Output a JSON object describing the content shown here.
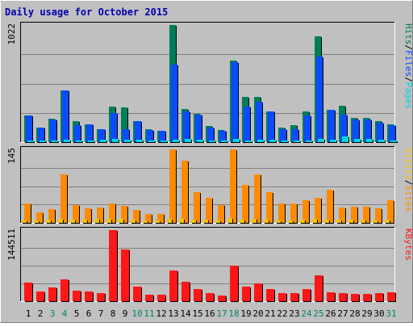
{
  "title": "Daily usage for October 2015",
  "colors": {
    "background": "#C0C0C0",
    "frame_light": "#FFFFFF",
    "frame_dark": "#808080",
    "title": "#0000B0",
    "hits": "#007E5A",
    "files": "#0B4BFF",
    "pages": "#00D5E0",
    "visits": "#F5C400",
    "sites": "#FF8A00",
    "kbytes": "#FF1717",
    "label_dark": "#000000",
    "weekend_label": "#00826B",
    "gridline": "#808080"
  },
  "chart_data": [
    {
      "type": "bar",
      "panel": "hits",
      "ymax_label": "1022",
      "ymax": 1022,
      "categories": [
        "1",
        "2",
        "3",
        "4",
        "5",
        "6",
        "7",
        "8",
        "9",
        "10",
        "11",
        "12",
        "13",
        "14",
        "15",
        "16",
        "17",
        "18",
        "19",
        "20",
        "21",
        "22",
        "23",
        "24",
        "25",
        "26",
        "27",
        "28",
        "29",
        "30",
        "31"
      ],
      "legend": [
        "Pages",
        "/",
        "Files",
        "/",
        "Hits"
      ],
      "series": [
        {
          "name": "Hits",
          "values": [
            235,
            125,
            205,
            450,
            180,
            155,
            115,
            310,
            300,
            185,
            110,
            100,
            1022,
            290,
            245,
            140,
            105,
            710,
            395,
            395,
            270,
            125,
            150,
            270,
            925,
            285,
            320,
            210,
            210,
            185,
            155
          ]
        },
        {
          "name": "Files",
          "values": [
            230,
            125,
            195,
            450,
            150,
            155,
            110,
            255,
            110,
            180,
            105,
            100,
            680,
            270,
            240,
            125,
            100,
            700,
            310,
            355,
            265,
            115,
            110,
            235,
            750,
            280,
            240,
            195,
            200,
            170,
            150
          ]
        },
        {
          "name": "Pages",
          "values": [
            12,
            12,
            14,
            20,
            14,
            16,
            22,
            28,
            20,
            18,
            10,
            10,
            24,
            26,
            18,
            14,
            12,
            28,
            16,
            22,
            18,
            12,
            12,
            14,
            30,
            20,
            50,
            28,
            30,
            22,
            15
          ]
        }
      ]
    },
    {
      "type": "bar",
      "panel": "visits",
      "ymax_label": "145",
      "ymax": 145,
      "categories": [
        "1",
        "2",
        "3",
        "4",
        "5",
        "6",
        "7",
        "8",
        "9",
        "10",
        "11",
        "12",
        "13",
        "14",
        "15",
        "16",
        "17",
        "18",
        "19",
        "20",
        "21",
        "22",
        "23",
        "24",
        "25",
        "26",
        "27",
        "28",
        "29",
        "30",
        "31"
      ],
      "legend": [
        "Sites",
        "/",
        "Visits"
      ],
      "series": [
        {
          "name": "Sites",
          "values": [
            38,
            20,
            27,
            95,
            35,
            28,
            30,
            38,
            33,
            25,
            18,
            18,
            145,
            122,
            60,
            50,
            35,
            145,
            75,
            95,
            60,
            38,
            38,
            45,
            50,
            65,
            30,
            32,
            32,
            28,
            45
          ]
        },
        {
          "name": "Visits",
          "values": [
            5,
            5,
            6,
            8,
            6,
            6,
            8,
            8,
            8,
            6,
            5,
            5,
            8,
            8,
            6,
            6,
            5,
            10,
            6,
            8,
            6,
            5,
            5,
            6,
            8,
            6,
            6,
            6,
            6,
            5,
            6
          ]
        }
      ]
    },
    {
      "type": "bar",
      "panel": "kbytes",
      "ymax_label": "144511",
      "ymax": 144511,
      "categories": [
        "1",
        "2",
        "3",
        "4",
        "5",
        "6",
        "7",
        "8",
        "9",
        "10",
        "11",
        "12",
        "13",
        "14",
        "15",
        "16",
        "17",
        "18",
        "19",
        "20",
        "21",
        "22",
        "23",
        "24",
        "25",
        "26",
        "27",
        "28",
        "29",
        "30",
        "31"
      ],
      "legend": [
        "KBytes"
      ],
      "series": [
        {
          "name": "KBytes",
          "values": [
            37000,
            20000,
            28000,
            45000,
            22000,
            20000,
            16000,
            144511,
            105000,
            30000,
            13000,
            13000,
            62000,
            40000,
            25000,
            16000,
            12000,
            72000,
            30000,
            36000,
            24000,
            16000,
            16000,
            25000,
            52000,
            18000,
            16000,
            14000,
            14000,
            16000,
            18000
          ]
        }
      ]
    }
  ]
}
